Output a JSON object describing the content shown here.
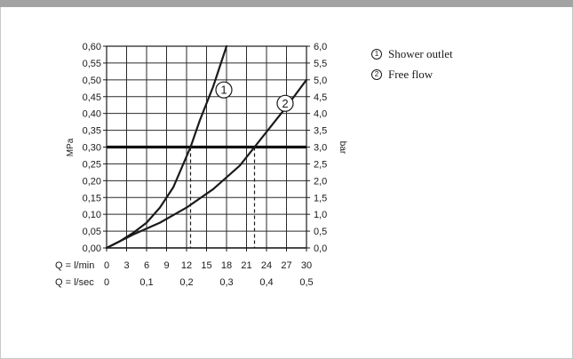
{
  "chart_data": {
    "type": "line",
    "ylabel_left": "MPa",
    "ylabel_right": "bar",
    "x_primary_label": "Q = l/min",
    "x_secondary_label": "Q = l/sec",
    "x_ticks_lmin": [
      "0",
      "3",
      "6",
      "9",
      "12",
      "15",
      "18",
      "21",
      "24",
      "27",
      "30"
    ],
    "x_ticks_lsec": [
      {
        "value": 0,
        "label": "0"
      },
      {
        "value": 0.1,
        "label": "0,1"
      },
      {
        "value": 0.2,
        "label": "0,2"
      },
      {
        "value": 0.3,
        "label": "0,3"
      },
      {
        "value": 0.4,
        "label": "0,4"
      },
      {
        "value": 0.5,
        "label": "0,5"
      }
    ],
    "y_ticks_mpa": [
      "0,00",
      "0,05",
      "0,10",
      "0,15",
      "0,20",
      "0,25",
      "0,30",
      "0,35",
      "0,40",
      "0,45",
      "0,50",
      "0,55",
      "0,60"
    ],
    "y_ticks_bar": [
      "0,0",
      "0,5",
      "1,0",
      "1,5",
      "2,0",
      "2,5",
      "3,0",
      "3,5",
      "4,0",
      "4,5",
      "5,0",
      "5,5",
      "6,0"
    ],
    "xlim": [
      0,
      30
    ],
    "ylim": [
      0,
      0.6
    ],
    "grid": true,
    "reference_pressure_mpa": 0.3,
    "series": [
      {
        "name": "Shower outlet",
        "marker": "1",
        "label_at": [
          17.6,
          0.47
        ],
        "points": [
          [
            0,
            0
          ],
          [
            2,
            0.02
          ],
          [
            4,
            0.045
          ],
          [
            6,
            0.075
          ],
          [
            8,
            0.12
          ],
          [
            10,
            0.18
          ],
          [
            12.6,
            0.3
          ],
          [
            14,
            0.38
          ],
          [
            16,
            0.48
          ],
          [
            18,
            0.6
          ]
        ]
      },
      {
        "name": "Free flow",
        "marker": "2",
        "label_at": [
          26.8,
          0.43
        ],
        "points": [
          [
            0,
            0
          ],
          [
            4,
            0.04
          ],
          [
            8,
            0.075
          ],
          [
            12,
            0.12
          ],
          [
            16,
            0.175
          ],
          [
            20,
            0.245
          ],
          [
            22.2,
            0.3
          ],
          [
            24,
            0.345
          ],
          [
            27,
            0.42
          ],
          [
            30,
            0.5
          ]
        ]
      }
    ]
  },
  "legend": [
    {
      "marker": "①",
      "label": "Shower outlet"
    },
    {
      "marker": "②",
      "label": "Free flow"
    }
  ]
}
